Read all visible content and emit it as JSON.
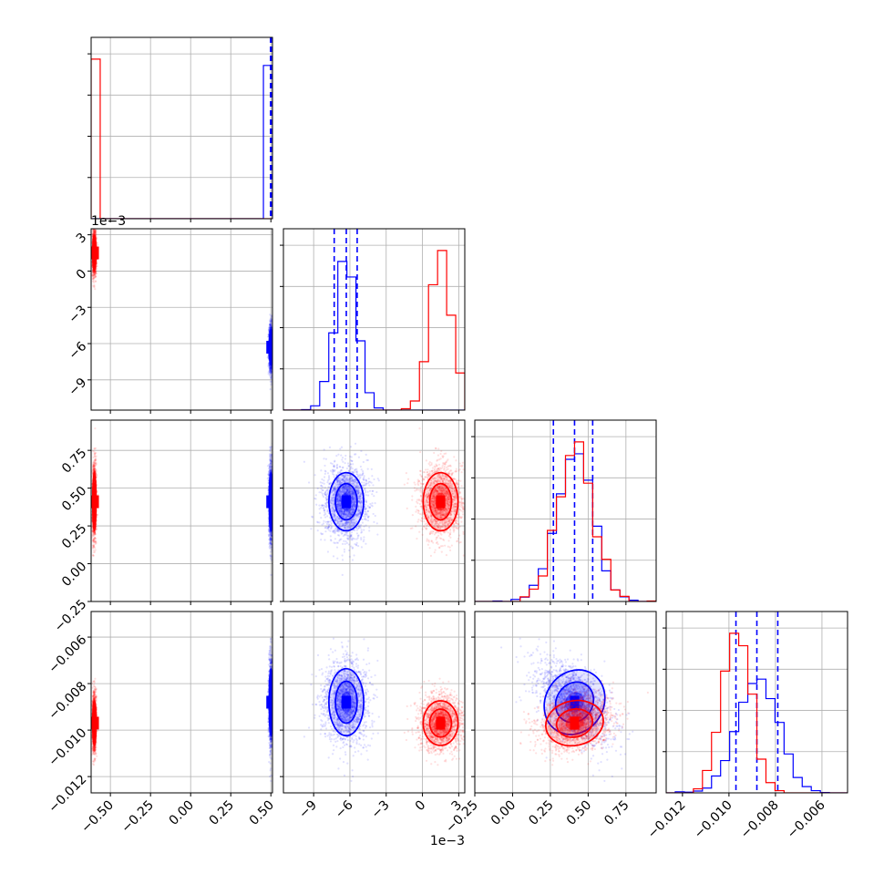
{
  "chart_data": {
    "type": "corner",
    "dimensions": 4,
    "colors": {
      "blue": "#0000ff",
      "red": "#ff0000",
      "grid": "#b0b0b0"
    },
    "axes": [
      {
        "id": "p0",
        "range": [
          -0.62,
          0.51
        ],
        "ticks": [
          -0.5,
          -0.25,
          0.0,
          0.25,
          0.5
        ],
        "tick_labels": [
          "−0.50",
          "−0.25",
          "0.00",
          "0.25",
          "0.50"
        ],
        "offset_label": ""
      },
      {
        "id": "p1",
        "range": [
          -0.0115,
          0.0035
        ],
        "ticks": [
          -0.009,
          -0.006,
          -0.003,
          0.0,
          0.003
        ],
        "tick_labels": [
          "−9",
          "−6",
          "−3",
          "0",
          "3"
        ],
        "offset_label": "1e−3"
      },
      {
        "id": "p2",
        "range": [
          -0.25,
          0.95
        ],
        "ticks": [
          -0.25,
          0.0,
          0.25,
          0.5,
          0.75
        ],
        "tick_labels": [
          "−0.25",
          "0.00",
          "0.25",
          "0.50",
          "0.75"
        ],
        "offset_label": ""
      },
      {
        "id": "p3",
        "range": [
          -0.0127,
          -0.0049
        ],
        "ticks": [
          -0.012,
          -0.01,
          -0.008,
          -0.006
        ],
        "tick_labels": [
          "−0.012",
          "−0.010",
          "−0.008",
          "−0.006"
        ],
        "offset_label": ""
      }
    ],
    "series": [
      {
        "color": "blue",
        "mean": [
          0.5,
          -0.0063,
          0.41,
          -0.0088
        ],
        "std": [
          0.006,
          0.0009,
          0.12,
          0.0009
        ],
        "corr": {
          "2-3": -0.55
        },
        "quantiles": [
          [
            0.498,
            0.5,
            0.502
          ],
          [
            -0.0073,
            -0.0063,
            -0.0054
          ],
          [
            0.27,
            0.41,
            0.53
          ],
          [
            -0.0097,
            -0.0088,
            -0.0079
          ]
        ]
      },
      {
        "color": "red",
        "mean": [
          -0.6,
          0.0015,
          0.41,
          -0.0097
        ],
        "std": [
          0.006,
          0.0009,
          0.12,
          0.0006
        ],
        "corr": {
          "2-3": 0.2
        }
      }
    ]
  }
}
